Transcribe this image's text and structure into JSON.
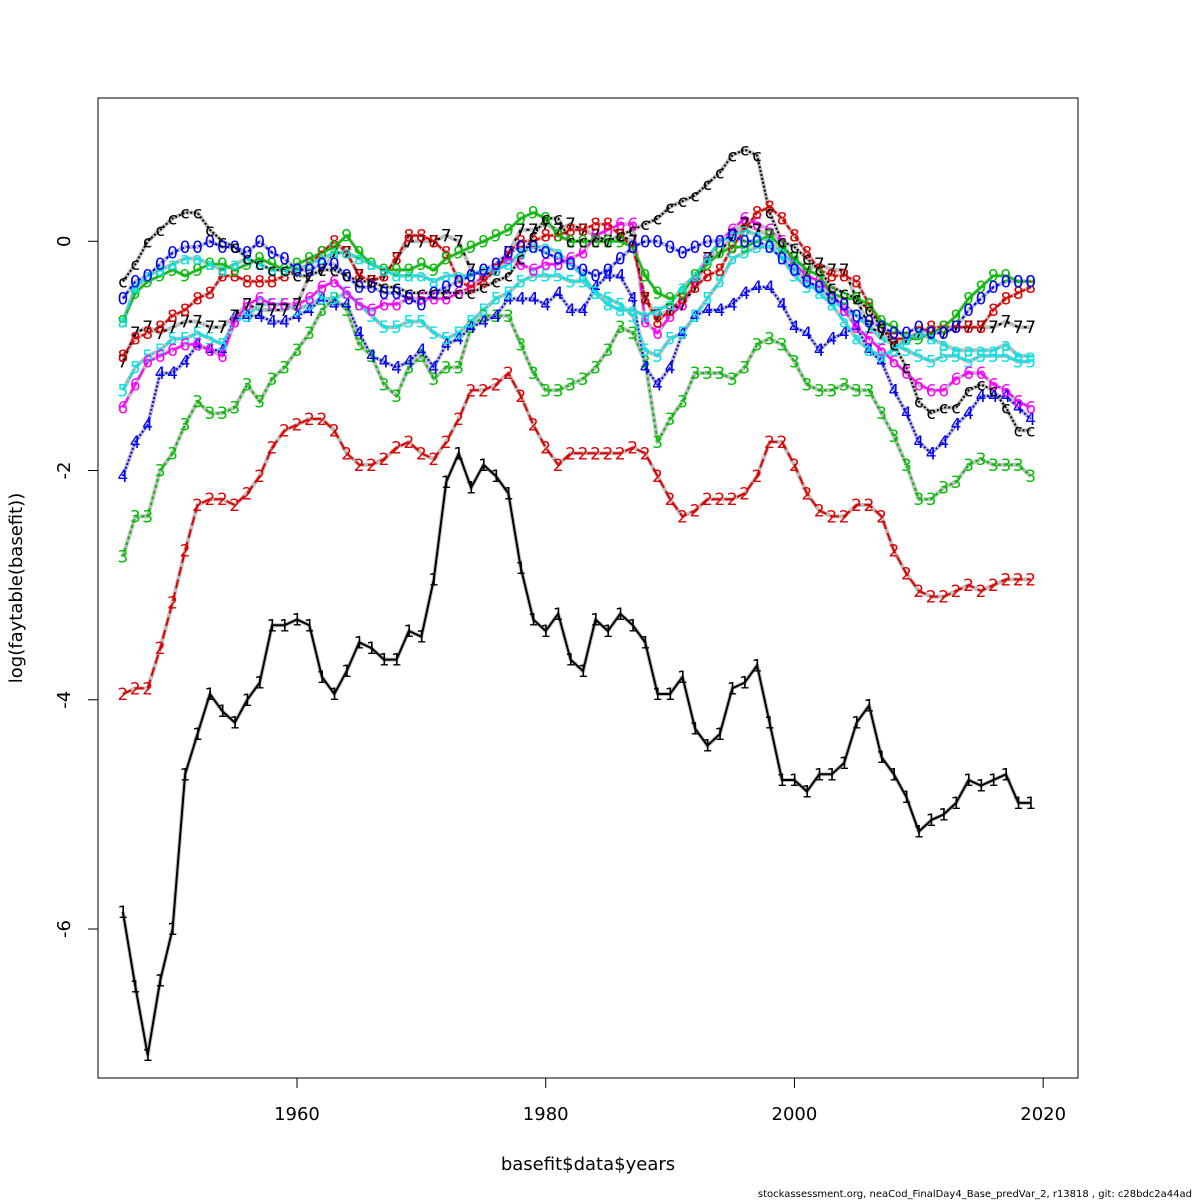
{
  "chart_data": {
    "type": "line",
    "title": "",
    "xlabel": "basefit$data$years",
    "ylabel": "log(faytable(basefit))",
    "xlim": [
      1944.0,
      2022.8
    ],
    "ylim": [
      -7.3,
      1.25
    ],
    "x_ticks": [
      1960,
      1980,
      2000,
      2020
    ],
    "y_ticks": [
      0,
      -2,
      -4,
      -6
    ],
    "grid": false,
    "footer": "stockassessment.org, neaCod_FinalDay4_Base_predVar_2, r13818 , git: c28bdc2a44ad",
    "start_year": 1946,
    "fit_color": "#bebebe",
    "series": [
      {
        "symbol": "1",
        "color": "#000000",
        "values": [
          -5.85,
          -6.5,
          -7.1,
          -6.45,
          -6.0,
          -4.65,
          -4.3,
          -3.95,
          -4.1,
          -4.2,
          -4.0,
          -3.85,
          -3.35,
          -3.35,
          -3.3,
          -3.35,
          -3.8,
          -3.95,
          -3.75,
          -3.5,
          -3.55,
          -3.65,
          -3.65,
          -3.4,
          -3.45,
          -2.95,
          -2.1,
          -1.85,
          -2.15,
          -1.95,
          -2.05,
          -2.2,
          -2.85,
          -3.3,
          -3.4,
          -3.25,
          -3.65,
          -3.75,
          -3.3,
          -3.4,
          -3.25,
          -3.35,
          -3.5,
          -3.95,
          -3.95,
          -3.8,
          -4.25,
          -4.4,
          -4.3,
          -3.9,
          -3.85,
          -3.7,
          -4.2,
          -4.7,
          -4.7,
          -4.8,
          -4.65,
          -4.65,
          -4.55,
          -4.2,
          -4.05,
          -4.5,
          -4.65,
          -4.85,
          -5.15,
          -5.05,
          -5.0,
          -4.9,
          -4.7,
          -4.75,
          -4.7,
          -4.65,
          -4.9,
          -4.9
        ]
      },
      {
        "symbol": "2",
        "color": "#df0000",
        "values": [
          -3.95,
          -3.9,
          -3.9,
          -3.55,
          -3.15,
          -2.7,
          -2.3,
          -2.25,
          -2.25,
          -2.3,
          -2.2,
          -2.05,
          -1.8,
          -1.65,
          -1.6,
          -1.55,
          -1.55,
          -1.65,
          -1.85,
          -1.95,
          -1.95,
          -1.9,
          -1.8,
          -1.75,
          -1.85,
          -1.9,
          -1.75,
          -1.55,
          -1.3,
          -1.3,
          -1.25,
          -1.15,
          -1.35,
          -1.6,
          -1.8,
          -1.95,
          -1.85,
          -1.85,
          -1.85,
          -1.85,
          -1.85,
          -1.8,
          -1.85,
          -2.05,
          -2.25,
          -2.4,
          -2.35,
          -2.25,
          -2.25,
          -2.25,
          -2.2,
          -2.05,
          -1.75,
          -1.75,
          -1.95,
          -2.2,
          -2.35,
          -2.4,
          -2.4,
          -2.3,
          -2.3,
          -2.4,
          -2.7,
          -2.9,
          -3.05,
          -3.1,
          -3.1,
          -3.05,
          -3.0,
          -3.05,
          -3.0,
          -2.95,
          -2.95,
          -2.95
        ]
      },
      {
        "symbol": "3",
        "color": "#00c000",
        "values": [
          -2.75,
          -2.4,
          -2.4,
          -2.0,
          -1.85,
          -1.6,
          -1.4,
          -1.5,
          -1.5,
          -1.45,
          -1.25,
          -1.4,
          -1.2,
          -1.1,
          -0.95,
          -0.8,
          -0.6,
          -0.5,
          -0.6,
          -0.9,
          -1.0,
          -1.25,
          -1.35,
          -1.1,
          -1.0,
          -1.2,
          -1.1,
          -1.1,
          -0.75,
          -0.65,
          -0.65,
          -0.65,
          -0.9,
          -1.15,
          -1.3,
          -1.3,
          -1.25,
          -1.2,
          -1.1,
          -0.95,
          -0.75,
          -0.8,
          -1.05,
          -1.75,
          -1.55,
          -1.4,
          -1.15,
          -1.15,
          -1.15,
          -1.2,
          -1.1,
          -0.9,
          -0.85,
          -0.9,
          -1.05,
          -1.25,
          -1.3,
          -1.3,
          -1.25,
          -1.3,
          -1.3,
          -1.5,
          -1.7,
          -1.95,
          -2.25,
          -2.25,
          -2.15,
          -2.1,
          -1.95,
          -1.9,
          -1.95,
          -1.95,
          -1.95,
          -2.05
        ]
      },
      {
        "symbol": "4",
        "color": "#0000ff",
        "values": [
          -2.05,
          -1.75,
          -1.6,
          -1.15,
          -1.15,
          -1.05,
          -0.9,
          -0.95,
          -0.95,
          -0.65,
          -0.65,
          -0.65,
          -0.7,
          -0.7,
          -0.65,
          -0.6,
          -0.5,
          -0.55,
          -0.55,
          -0.8,
          -1.0,
          -1.05,
          -1.1,
          -1.05,
          -0.95,
          -1.1,
          -0.9,
          -0.85,
          -0.75,
          -0.7,
          -0.65,
          -0.5,
          -0.5,
          -0.5,
          -0.55,
          -0.45,
          -0.6,
          -0.6,
          -0.4,
          -0.3,
          -0.3,
          -0.5,
          -1.1,
          -1.25,
          -1.1,
          -0.8,
          -0.65,
          -0.6,
          -0.6,
          -0.55,
          -0.45,
          -0.4,
          -0.4,
          -0.55,
          -0.75,
          -0.8,
          -0.95,
          -0.85,
          -0.8,
          -0.75,
          -0.95,
          -1.05,
          -1.3,
          -1.5,
          -1.75,
          -1.85,
          -1.75,
          -1.6,
          -1.5,
          -1.35,
          -1.35,
          -1.35,
          -1.45,
          -1.55
        ]
      },
      {
        "symbol": "5",
        "color": "#00e5e5",
        "values": [
          -1.3,
          -1.1,
          -1.0,
          -0.95,
          -0.85,
          -0.85,
          -0.8,
          -0.85,
          -0.9,
          -0.7,
          -0.65,
          -0.55,
          -0.55,
          -0.55,
          -0.6,
          -0.55,
          -0.5,
          -0.5,
          -0.45,
          -0.55,
          -0.65,
          -0.75,
          -0.75,
          -0.7,
          -0.7,
          -0.8,
          -0.85,
          -0.8,
          -0.7,
          -0.6,
          -0.5,
          -0.45,
          -0.35,
          -0.3,
          -0.3,
          -0.3,
          -0.35,
          -0.35,
          -0.45,
          -0.5,
          -0.55,
          -0.65,
          -0.95,
          -1.0,
          -0.85,
          -0.8,
          -0.65,
          -0.5,
          -0.35,
          -0.15,
          -0.1,
          -0.05,
          -0.05,
          -0.15,
          -0.3,
          -0.4,
          -0.4,
          -0.5,
          -0.6,
          -0.65,
          -0.75,
          -0.85,
          -0.9,
          -0.95,
          -1.0,
          -1.05,
          -1.0,
          -1.0,
          -1.05,
          -1.0,
          -1.0,
          -1.0,
          -1.05,
          -1.05
        ]
      },
      {
        "symbol": "6",
        "color": "#ff00ff",
        "values": [
          -1.45,
          -1.25,
          -1.05,
          -1.0,
          -0.95,
          -0.9,
          -0.9,
          -0.95,
          -1.0,
          -0.7,
          -0.55,
          -0.5,
          -0.55,
          -0.55,
          -0.55,
          -0.5,
          -0.4,
          -0.35,
          -0.45,
          -0.55,
          -0.6,
          -0.55,
          -0.55,
          -0.5,
          -0.5,
          -0.5,
          -0.5,
          -0.45,
          -0.4,
          -0.3,
          -0.25,
          -0.15,
          -0.2,
          -0.25,
          -0.2,
          -0.2,
          -0.15,
          -0.1,
          0.05,
          0.1,
          0.15,
          0.15,
          -0.7,
          -0.8,
          -0.65,
          -0.55,
          -0.35,
          -0.15,
          0.0,
          0.1,
          0.2,
          0.15,
          0.1,
          0.0,
          -0.2,
          -0.3,
          -0.35,
          -0.45,
          -0.6,
          -0.75,
          -0.85,
          -0.95,
          -1.05,
          -1.15,
          -1.25,
          -1.3,
          -1.3,
          -1.2,
          -1.15,
          -1.15,
          -1.25,
          -1.3,
          -1.4,
          -1.45
        ]
      },
      {
        "symbol": "7",
        "color": "#000000",
        "values": [
          -1.05,
          -0.8,
          -0.75,
          -0.8,
          -0.75,
          -0.7,
          -0.7,
          -0.75,
          -0.75,
          -0.65,
          -0.55,
          -0.6,
          -0.6,
          -0.6,
          -0.55,
          -0.3,
          -0.25,
          -0.1,
          -0.1,
          -0.3,
          -0.35,
          -0.3,
          -0.15,
          0.0,
          0.0,
          0.0,
          0.05,
          0.0,
          -0.25,
          -0.3,
          -0.25,
          -0.1,
          0.1,
          0.1,
          0.15,
          0.1,
          0.15,
          0.1,
          0.05,
          0.0,
          0.05,
          0.0,
          -0.5,
          -0.65,
          -0.6,
          -0.55,
          -0.4,
          -0.15,
          -0.1,
          0.05,
          0.15,
          0.1,
          0.05,
          -0.05,
          -0.15,
          -0.25,
          -0.2,
          -0.25,
          -0.25,
          -0.5,
          -0.75,
          -0.8,
          -0.9,
          -0.85,
          -0.8,
          -0.8,
          -0.8,
          -0.75,
          -0.75,
          -0.75,
          -0.75,
          -0.7,
          -0.75,
          -0.75
        ]
      },
      {
        "symbol": "8",
        "color": "#df0000",
        "values": [
          -1.0,
          -0.85,
          -0.8,
          -0.75,
          -0.65,
          -0.6,
          -0.5,
          -0.45,
          -0.3,
          -0.3,
          -0.35,
          -0.35,
          -0.35,
          -0.3,
          -0.25,
          -0.2,
          -0.1,
          0.0,
          -0.1,
          -0.3,
          -0.35,
          -0.3,
          -0.15,
          0.05,
          0.05,
          0.0,
          -0.1,
          -0.35,
          -0.4,
          -0.35,
          -0.25,
          -0.1,
          0.0,
          0.0,
          0.05,
          0.05,
          0.1,
          0.1,
          0.15,
          0.15,
          0.05,
          -0.05,
          -0.5,
          -0.7,
          -0.6,
          -0.5,
          -0.4,
          -0.3,
          -0.25,
          -0.05,
          0.1,
          0.25,
          0.3,
          0.2,
          0.05,
          -0.1,
          -0.25,
          -0.3,
          -0.3,
          -0.35,
          -0.55,
          -0.75,
          -0.85,
          -0.85,
          -0.8,
          -0.75,
          -0.75,
          -0.75,
          -0.75,
          -0.75,
          -0.6,
          -0.5,
          -0.45,
          -0.4
        ]
      },
      {
        "symbol": "9",
        "color": "#00c000",
        "values": [
          -0.7,
          -0.45,
          -0.35,
          -0.3,
          -0.25,
          -0.3,
          -0.25,
          -0.2,
          -0.2,
          -0.25,
          -0.2,
          -0.15,
          -0.2,
          -0.25,
          -0.2,
          -0.15,
          -0.1,
          -0.05,
          0.05,
          -0.1,
          -0.2,
          -0.25,
          -0.25,
          -0.25,
          -0.2,
          -0.25,
          -0.15,
          -0.1,
          -0.05,
          0.0,
          0.05,
          0.1,
          0.2,
          0.25,
          0.2,
          0.05,
          0.0,
          0.0,
          0.0,
          0.0,
          0.0,
          -0.05,
          -0.3,
          -0.45,
          -0.5,
          -0.45,
          -0.3,
          -0.2,
          -0.1,
          -0.05,
          -0.05,
          0.0,
          0.05,
          -0.05,
          -0.15,
          -0.25,
          -0.3,
          -0.45,
          -0.5,
          -0.5,
          -0.55,
          -0.7,
          -0.75,
          -0.85,
          -0.85,
          -0.8,
          -0.75,
          -0.65,
          -0.5,
          -0.4,
          -0.3,
          -0.3,
          -0.35,
          -0.35
        ]
      },
      {
        "symbol": "a",
        "color": "#00e5e5",
        "values": [
          -0.7,
          -0.4,
          -0.3,
          -0.25,
          -0.2,
          -0.15,
          -0.15,
          -0.2,
          -0.25,
          -0.2,
          -0.15,
          -0.2,
          -0.25,
          -0.25,
          -0.25,
          -0.2,
          -0.15,
          -0.1,
          -0.1,
          -0.15,
          -0.2,
          -0.25,
          -0.3,
          -0.3,
          -0.3,
          -0.35,
          -0.3,
          -0.3,
          -0.3,
          -0.25,
          -0.25,
          -0.2,
          -0.1,
          -0.05,
          -0.05,
          -0.1,
          -0.2,
          -0.3,
          -0.45,
          -0.55,
          -0.6,
          -0.6,
          -0.65,
          -0.6,
          -0.55,
          -0.4,
          -0.3,
          -0.15,
          0.0,
          0.05,
          0.1,
          0.05,
          0.0,
          -0.1,
          -0.2,
          -0.35,
          -0.45,
          -0.55,
          -0.7,
          -0.85,
          -0.95,
          -1.0,
          -0.95,
          -0.85,
          -0.8,
          -0.85,
          -0.9,
          -0.95,
          -0.95,
          -0.95,
          -0.95,
          -0.9,
          -1.0,
          -1.0
        ]
      },
      {
        "symbol": "0",
        "color": "#0000ff",
        "values": [
          -0.5,
          -0.35,
          -0.3,
          -0.2,
          -0.1,
          -0.05,
          -0.05,
          0.0,
          -0.05,
          -0.05,
          -0.1,
          0.0,
          -0.1,
          -0.15,
          -0.25,
          -0.25,
          -0.2,
          -0.2,
          -0.3,
          -0.4,
          -0.4,
          -0.45,
          -0.45,
          -0.5,
          -0.55,
          -0.45,
          -0.4,
          -0.35,
          -0.3,
          -0.25,
          -0.2,
          -0.1,
          -0.05,
          -0.05,
          -0.1,
          -0.15,
          -0.2,
          -0.25,
          -0.3,
          -0.25,
          -0.15,
          -0.05,
          0.0,
          0.0,
          -0.05,
          -0.1,
          -0.05,
          0.0,
          0.0,
          0.05,
          0.0,
          0.0,
          -0.05,
          -0.15,
          -0.25,
          -0.35,
          -0.4,
          -0.5,
          -0.55,
          -0.65,
          -0.7,
          -0.75,
          -0.8,
          -0.8,
          -0.75,
          -0.8,
          -0.8,
          -0.75,
          -0.6,
          -0.5,
          -0.4,
          -0.35,
          -0.35,
          -0.35
        ]
      },
      {
        "symbol": "c",
        "color": "#000000",
        "values": [
          -0.35,
          -0.2,
          0.0,
          0.1,
          0.2,
          0.25,
          0.25,
          0.1,
          0.0,
          -0.05,
          -0.15,
          -0.2,
          -0.25,
          -0.25,
          -0.3,
          -0.3,
          -0.25,
          -0.25,
          -0.3,
          -0.35,
          -0.35,
          -0.4,
          -0.4,
          -0.45,
          -0.45,
          -0.45,
          -0.45,
          -0.45,
          -0.45,
          -0.4,
          -0.35,
          -0.3,
          -0.15,
          0.05,
          0.2,
          0.2,
          0.0,
          0.0,
          0.0,
          0.0,
          0.05,
          0.1,
          0.15,
          0.2,
          0.3,
          0.35,
          0.4,
          0.5,
          0.6,
          0.75,
          0.8,
          0.75,
          0.25,
          0.0,
          -0.05,
          -0.15,
          -0.25,
          -0.4,
          -0.45,
          -0.5,
          -0.6,
          -0.75,
          -0.9,
          -1.1,
          -1.4,
          -1.5,
          -1.45,
          -1.45,
          -1.3,
          -1.25,
          -1.3,
          -1.45,
          -1.65,
          -1.65
        ]
      }
    ]
  }
}
